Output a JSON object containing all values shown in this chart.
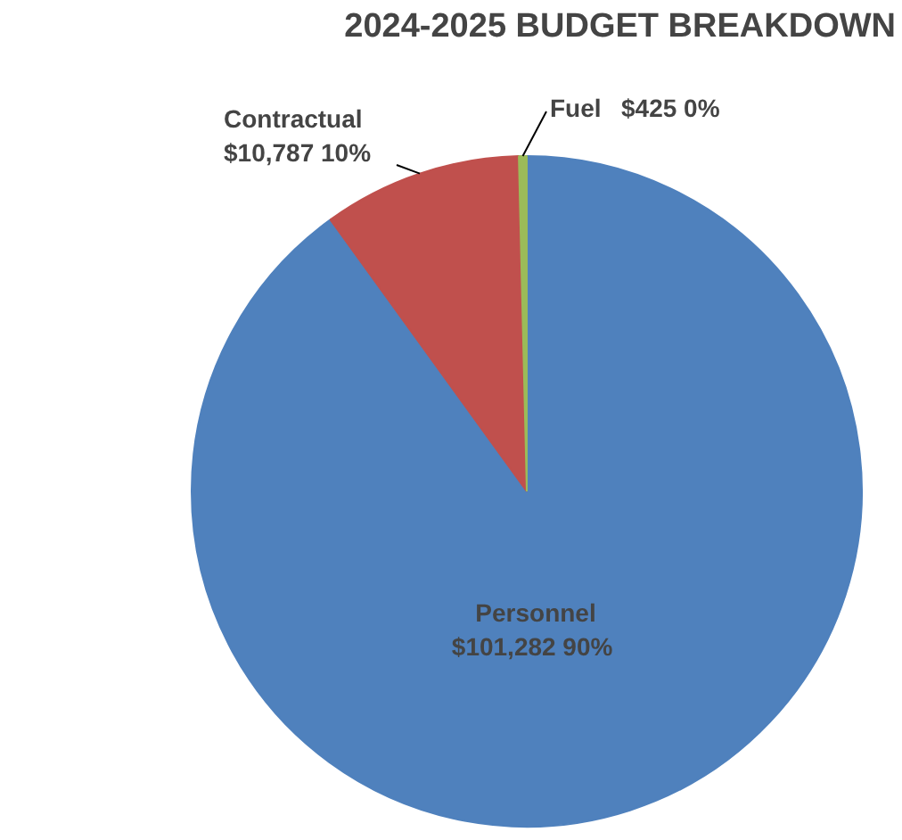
{
  "chart_data": {
    "type": "pie",
    "title": "2024-2025 BUDGET BREAKDOWN",
    "categories": [
      "Personnel",
      "Contractual",
      "Fuel"
    ],
    "values": [
      101282,
      10787,
      425
    ],
    "colors": [
      "#4f81bd",
      "#c0504d",
      "#9bbb59"
    ],
    "value_labels": [
      "$101,282  90%",
      "$10,787  10%",
      "$425  0%"
    ]
  }
}
